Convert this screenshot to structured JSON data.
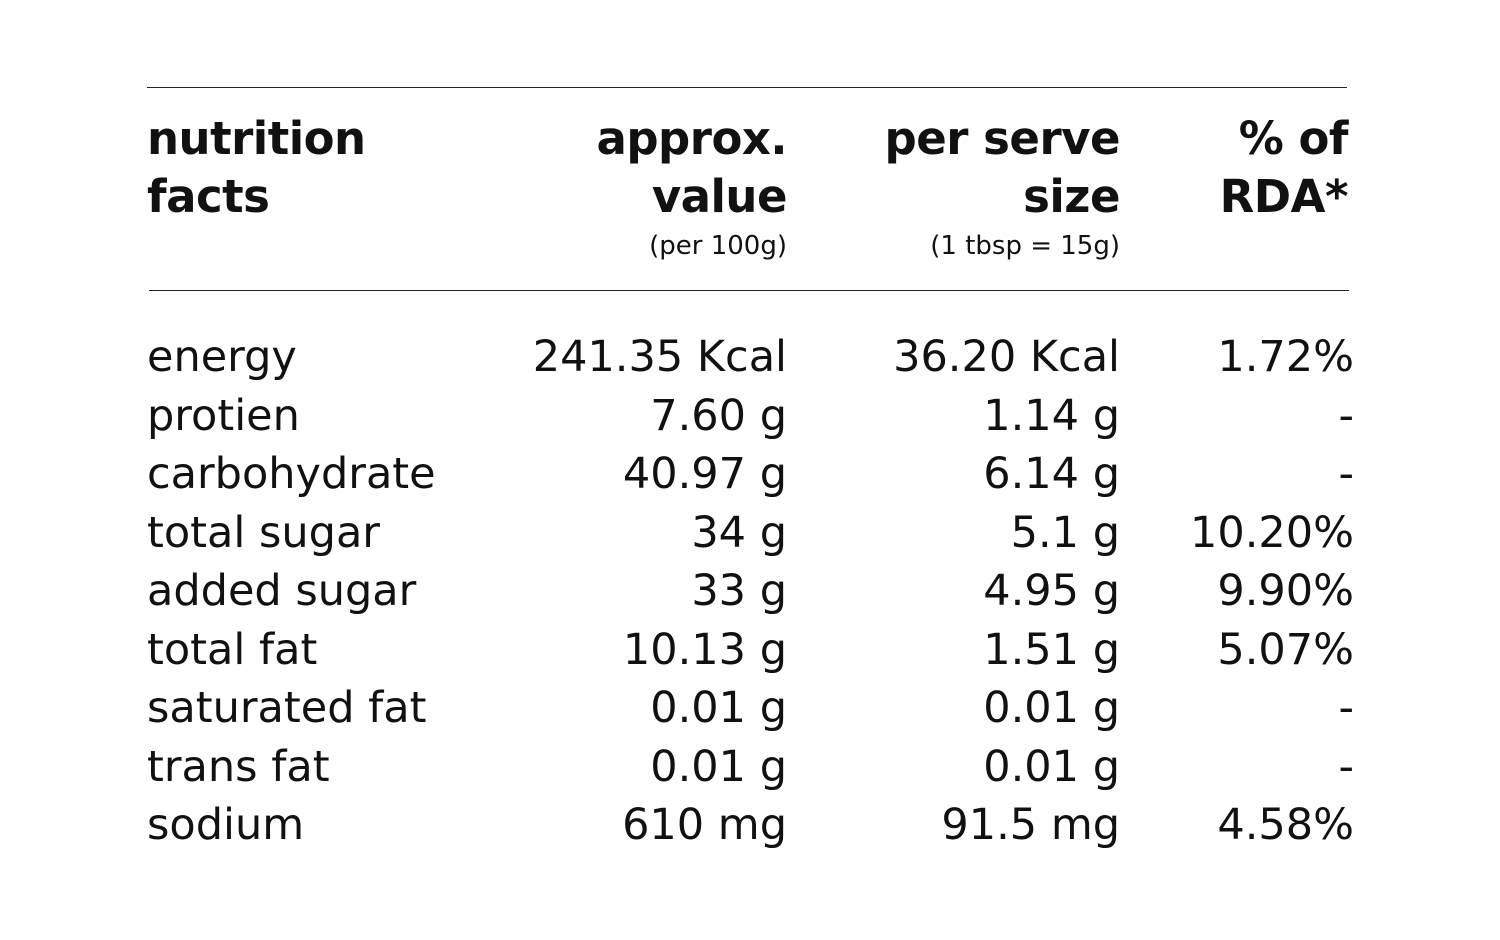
{
  "header": {
    "nutrient": [
      "nutrition",
      "facts"
    ],
    "value": [
      "approx.",
      "value"
    ],
    "value_sub": "(per 100g)",
    "serve": [
      "per serve",
      "size"
    ],
    "serve_sub": "(1 tbsp = 15g)",
    "rda": [
      "% of",
      "RDA*"
    ]
  },
  "rows": [
    {
      "name": "energy",
      "value": "241.35 Kcal",
      "serve": "36.20 Kcal",
      "rda": "1.72%"
    },
    {
      "name": "protien",
      "value": "7.60 g",
      "serve": "1.14 g",
      "rda": "-"
    },
    {
      "name": "carbohydrate",
      "value": "40.97 g",
      "serve": "6.14 g",
      "rda": "-"
    },
    {
      "name": "total sugar",
      "value": "34 g",
      "serve": "5.1 g",
      "rda": "10.20%"
    },
    {
      "name": "added sugar",
      "value": "33 g",
      "serve": "4.95 g",
      "rda": "9.90%"
    },
    {
      "name": "total fat",
      "value": "10.13 g",
      "serve": "1.51 g",
      "rda": "5.07%"
    },
    {
      "name": "saturated fat",
      "value": "0.01 g",
      "serve": "0.01 g",
      "rda": "-"
    },
    {
      "name": "trans fat",
      "value": "0.01 g",
      "serve": "0.01 g",
      "rda": "-"
    },
    {
      "name": "sodium",
      "value": "610 mg",
      "serve": "91.5 mg",
      "rda": "4.58%"
    }
  ]
}
